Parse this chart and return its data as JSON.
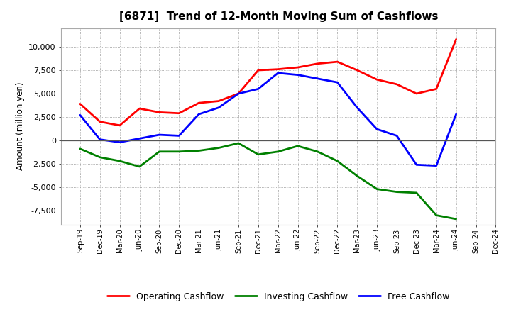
{
  "title": "[6871]  Trend of 12-Month Moving Sum of Cashflows",
  "ylabel": "Amount (million yen)",
  "background_color": "#ffffff",
  "plot_background": "#ffffff",
  "grid_color": "#999999",
  "x_labels": [
    "Sep-19",
    "Dec-19",
    "Mar-20",
    "Jun-20",
    "Sep-20",
    "Dec-20",
    "Mar-21",
    "Jun-21",
    "Sep-21",
    "Dec-21",
    "Mar-22",
    "Jun-22",
    "Sep-22",
    "Dec-22",
    "Mar-23",
    "Jun-23",
    "Sep-23",
    "Dec-23",
    "Mar-24",
    "Jun-24",
    "Sep-24",
    "Dec-24"
  ],
  "operating": [
    3900,
    2000,
    1600,
    3400,
    3000,
    2900,
    4000,
    4200,
    5000,
    7500,
    7600,
    7800,
    8200,
    8400,
    7500,
    6500,
    6000,
    5000,
    5500,
    10800,
    null,
    null
  ],
  "investing": [
    -900,
    -1800,
    -2200,
    -2800,
    -1200,
    -1200,
    -1100,
    -800,
    -300,
    -1500,
    -1200,
    -600,
    -1200,
    -2200,
    -3800,
    -5200,
    -5500,
    -5600,
    -8000,
    -8400,
    null,
    null
  ],
  "free": [
    2700,
    100,
    -200,
    200,
    600,
    500,
    2800,
    3500,
    5000,
    5500,
    7200,
    7000,
    6600,
    6200,
    3500,
    1200,
    500,
    -2600,
    -2700,
    2800,
    null,
    null
  ],
  "operating_color": "#ff0000",
  "investing_color": "#008000",
  "free_color": "#0000ff",
  "ylim": [
    -9000,
    12000
  ],
  "yticks": [
    -7500,
    -5000,
    -2500,
    0,
    2500,
    5000,
    7500,
    10000
  ],
  "linewidth": 2.0
}
